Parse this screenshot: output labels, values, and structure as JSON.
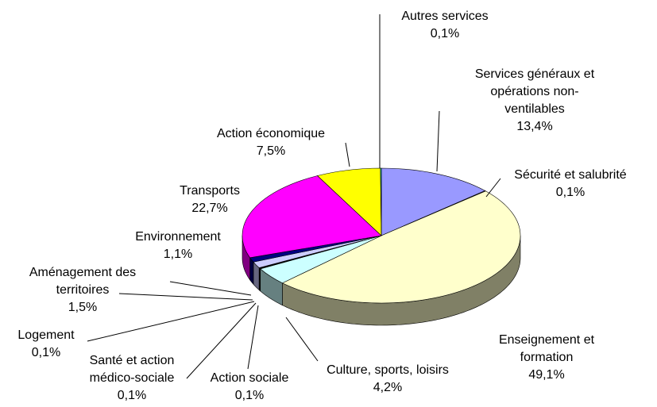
{
  "chart_data": {
    "type": "pie3d",
    "categories": [
      "Services généraux et opérations non-ventilables",
      "Sécurité et salubrité",
      "Enseignement et formation",
      "Culture, sports, loisirs",
      "Action sociale",
      "Santé et action médico-sociale",
      "Logement",
      "Aménagement des territoires",
      "Environnement",
      "Transports",
      "Action économique",
      "Autres services"
    ],
    "values": [
      13.4,
      0.1,
      49.1,
      4.2,
      0.1,
      0.1,
      0.1,
      1.5,
      1.1,
      22.7,
      7.5,
      0.1
    ],
    "value_labels": [
      "13,4%",
      "0,1%",
      "49,1%",
      "4,2%",
      "0,1%",
      "0,1%",
      "0,1%",
      "1,5%",
      "1,1%",
      "22,7%",
      "7,5%",
      "0,1%"
    ],
    "colors": [
      "#9999ff",
      "#993366",
      "#ffffcc",
      "#ccffff",
      "#660066",
      "#ff8080",
      "#0066cc",
      "#ccccff",
      "#000080",
      "#ff00ff",
      "#ffff00",
      "#00ffff"
    ]
  }
}
